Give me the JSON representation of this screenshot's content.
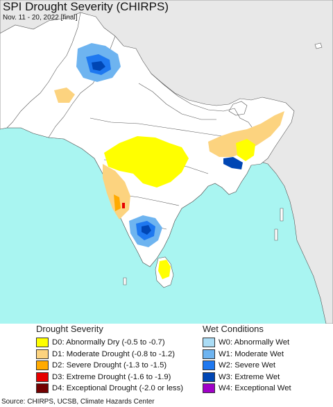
{
  "header": {
    "title": "SPI Drought Severity (CHIRPS)",
    "subtitle": "Nov. 11 - 20, 2022 [final]"
  },
  "legend_drought": {
    "title": "Drought Severity",
    "items": [
      {
        "label": "D0: Abnormally Dry (-0.5 to -0.7)",
        "color": "#ffff00"
      },
      {
        "label": "D1: Moderate Drought (-0.8 to -1.2)",
        "color": "#fcd37f"
      },
      {
        "label": "D2: Severe Drought (-1.3 to -1.5)",
        "color": "#ffaa00"
      },
      {
        "label": "D3: Extreme Drought (-1.6 to -1.9)",
        "color": "#e60000"
      },
      {
        "label": "D4: Exceptional Drought (-2.0 or less)",
        "color": "#730000"
      }
    ]
  },
  "legend_wet": {
    "title": "Wet Conditions",
    "items": [
      {
        "label": "W0: Abnormally Wet",
        "color": "#aadcf5"
      },
      {
        "label": "W1: Moderate Wet",
        "color": "#6eb4f0"
      },
      {
        "label": "W2: Severe Wet",
        "color": "#1e78f0"
      },
      {
        "label": "W3: Extreme Wet",
        "color": "#0046b4"
      },
      {
        "label": "W4: Exceptional Wet",
        "color": "#a000c8"
      }
    ]
  },
  "footer": {
    "source": "Source: CHIRPS, UCSB, Climate Hazards Center"
  },
  "map_colors": {
    "ocean": "#a9f5f1",
    "land_outside": "#e8e8e8",
    "land_region": "#ffffff",
    "border": "#555555"
  }
}
